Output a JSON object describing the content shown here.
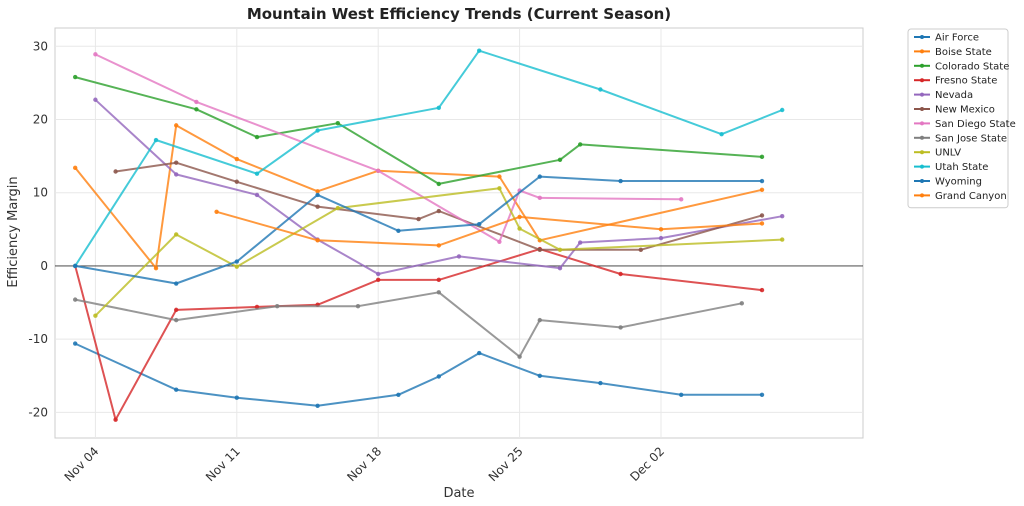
{
  "chart_data": {
    "type": "line",
    "title": "Mountain West Efficiency Trends (Current Season)",
    "xlabel": "Date",
    "ylabel": "Efficiency Margin",
    "x_type": "date",
    "xlim": [
      "2024-11-02",
      "2024-12-12"
    ],
    "ylim": [
      -23.5,
      32.5
    ],
    "yticks": [
      -20,
      -10,
      0,
      10,
      20,
      30
    ],
    "xticks": [
      {
        "date": "2024-11-04",
        "label": "Nov 04"
      },
      {
        "date": "2024-11-11",
        "label": "Nov 11"
      },
      {
        "date": "2024-11-18",
        "label": "Nov 18"
      },
      {
        "date": "2024-11-25",
        "label": "Nov 25"
      },
      {
        "date": "2024-12-02",
        "label": "Dec 02"
      }
    ],
    "grid": true,
    "zero_line": true,
    "legend_position": "outside-top-right",
    "series": [
      {
        "name": "Air Force",
        "color": "#1f77b4",
        "points": [
          [
            "2024-11-03",
            -10.6
          ],
          [
            "2024-11-08",
            -16.9
          ],
          [
            "2024-11-11",
            -18.0
          ],
          [
            "2024-11-15",
            -19.1
          ],
          [
            "2024-11-19",
            -17.6
          ],
          [
            "2024-11-21",
            -15.1
          ],
          [
            "2024-11-23",
            -11.9
          ],
          [
            "2024-11-26",
            -15.0
          ],
          [
            "2024-11-29",
            -16.0
          ],
          [
            "2024-12-03",
            -17.6
          ],
          [
            "2024-12-07",
            -17.6
          ]
        ]
      },
      {
        "name": "Boise State",
        "color": "#ff7f0e",
        "points": [
          [
            "2024-11-03",
            13.4
          ],
          [
            "2024-11-07",
            -0.3
          ],
          [
            "2024-11-08",
            19.2
          ],
          [
            "2024-11-11",
            14.6
          ],
          [
            "2024-11-15",
            10.2
          ],
          [
            "2024-11-18",
            13.0
          ],
          [
            "2024-11-24",
            12.2
          ],
          [
            "2024-11-26",
            3.5
          ],
          [
            "2024-12-07",
            10.4
          ]
        ]
      },
      {
        "name": "Colorado State",
        "color": "#2ca02c",
        "points": [
          [
            "2024-11-03",
            25.8
          ],
          [
            "2024-11-09",
            21.4
          ],
          [
            "2024-11-12",
            17.6
          ],
          [
            "2024-11-16",
            19.5
          ],
          [
            "2024-11-21",
            11.2
          ],
          [
            "2024-11-27",
            14.5
          ],
          [
            "2024-11-28",
            16.6
          ],
          [
            "2024-12-07",
            14.9
          ]
        ]
      },
      {
        "name": "Fresno State",
        "color": "#d62728",
        "points": [
          [
            "2024-11-03",
            0.0
          ],
          [
            "2024-11-05",
            -21.0
          ],
          [
            "2024-11-08",
            -6.0
          ],
          [
            "2024-11-12",
            -5.6
          ],
          [
            "2024-11-15",
            -5.3
          ],
          [
            "2024-11-18",
            -1.9
          ],
          [
            "2024-11-21",
            -1.9
          ],
          [
            "2024-11-26",
            2.3
          ],
          [
            "2024-11-30",
            -1.1
          ],
          [
            "2024-12-07",
            -3.3
          ]
        ]
      },
      {
        "name": "Nevada",
        "color": "#9467bd",
        "points": [
          [
            "2024-11-04",
            22.7
          ],
          [
            "2024-11-08",
            12.5
          ],
          [
            "2024-11-12",
            9.7
          ],
          [
            "2024-11-15",
            3.6
          ],
          [
            "2024-11-18",
            -1.1
          ],
          [
            "2024-11-22",
            1.3
          ],
          [
            "2024-11-27",
            -0.3
          ],
          [
            "2024-11-28",
            3.2
          ],
          [
            "2024-12-02",
            3.8
          ],
          [
            "2024-12-08",
            6.8
          ]
        ]
      },
      {
        "name": "New Mexico",
        "color": "#8c564b",
        "points": [
          [
            "2024-11-05",
            12.9
          ],
          [
            "2024-11-08",
            14.1
          ],
          [
            "2024-11-11",
            11.5
          ],
          [
            "2024-11-15",
            8.1
          ],
          [
            "2024-11-20",
            6.4
          ],
          [
            "2024-11-21",
            7.5
          ],
          [
            "2024-11-26",
            2.2
          ],
          [
            "2024-12-01",
            2.2
          ],
          [
            "2024-12-07",
            6.9
          ]
        ]
      },
      {
        "name": "San Diego State",
        "color": "#e377c2",
        "points": [
          [
            "2024-11-04",
            28.9
          ],
          [
            "2024-11-09",
            22.4
          ],
          [
            "2024-11-18",
            13.0
          ],
          [
            "2024-11-24",
            3.3
          ],
          [
            "2024-11-25",
            10.3
          ],
          [
            "2024-11-26",
            9.3
          ],
          [
            "2024-12-03",
            9.1
          ]
        ]
      },
      {
        "name": "San Jose State",
        "color": "#7f7f7f",
        "points": [
          [
            "2024-11-03",
            -4.6
          ],
          [
            "2024-11-08",
            -7.4
          ],
          [
            "2024-11-13",
            -5.5
          ],
          [
            "2024-11-17",
            -5.5
          ],
          [
            "2024-11-21",
            -3.6
          ],
          [
            "2024-11-25",
            -12.4
          ],
          [
            "2024-11-26",
            -7.4
          ],
          [
            "2024-11-30",
            -8.4
          ],
          [
            "2024-12-06",
            -5.1
          ]
        ]
      },
      {
        "name": "UNLV",
        "color": "#bcbd22",
        "points": [
          [
            "2024-11-04",
            -6.8
          ],
          [
            "2024-11-08",
            4.3
          ],
          [
            "2024-11-11",
            -0.1
          ],
          [
            "2024-11-16",
            7.9
          ],
          [
            "2024-11-24",
            10.6
          ],
          [
            "2024-11-25",
            5.1
          ],
          [
            "2024-11-27",
            2.2
          ],
          [
            "2024-12-08",
            3.6
          ]
        ]
      },
      {
        "name": "Utah State",
        "color": "#17becf",
        "points": [
          [
            "2024-11-03",
            0.0
          ],
          [
            "2024-11-07",
            17.2
          ],
          [
            "2024-11-12",
            12.6
          ],
          [
            "2024-11-15",
            18.5
          ],
          [
            "2024-11-21",
            21.6
          ],
          [
            "2024-11-23",
            29.4
          ],
          [
            "2024-11-29",
            24.1
          ],
          [
            "2024-12-05",
            18.0
          ],
          [
            "2024-12-08",
            21.3
          ]
        ]
      },
      {
        "name": "Wyoming",
        "color": "#1f77b4",
        "points": [
          [
            "2024-11-03",
            0.0
          ],
          [
            "2024-11-08",
            -2.4
          ],
          [
            "2024-11-11",
            0.6
          ],
          [
            "2024-11-15",
            9.7
          ],
          [
            "2024-11-19",
            4.8
          ],
          [
            "2024-11-23",
            5.7
          ],
          [
            "2024-11-26",
            12.2
          ],
          [
            "2024-11-30",
            11.6
          ],
          [
            "2024-12-07",
            11.6
          ]
        ]
      },
      {
        "name": "Grand Canyon",
        "color": "#ff7f0e",
        "points": [
          [
            "2024-11-10",
            7.4
          ],
          [
            "2024-11-15",
            3.5
          ],
          [
            "2024-11-21",
            2.8
          ],
          [
            "2024-11-25",
            6.7
          ],
          [
            "2024-12-02",
            5.0
          ],
          [
            "2024-12-07",
            5.8
          ]
        ]
      }
    ]
  }
}
